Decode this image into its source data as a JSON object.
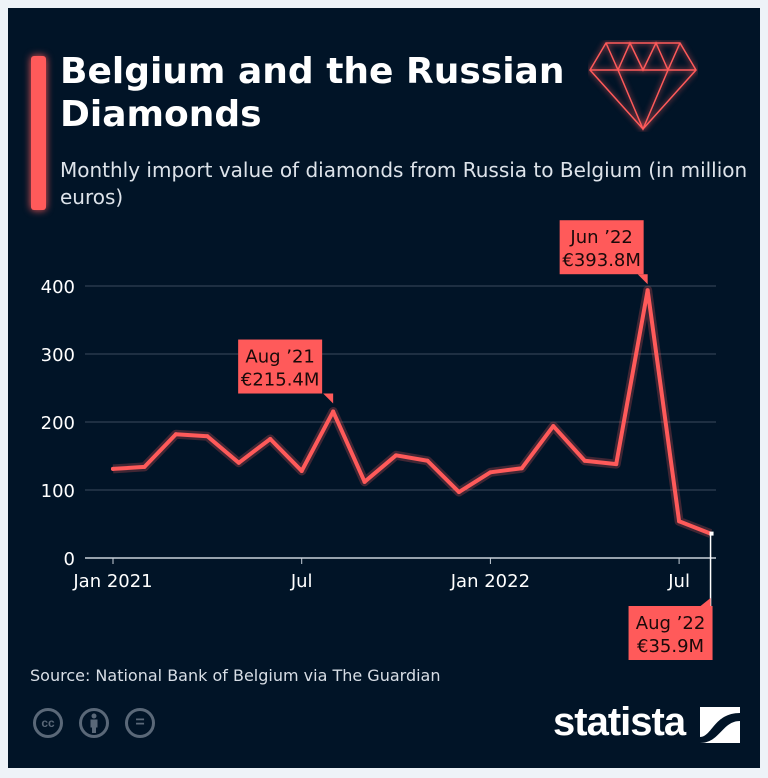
{
  "header": {
    "title": "Belgium and the Russian Diamonds",
    "subtitle": "Monthly import value of diamonds from Russia to Belgium (in million euros)"
  },
  "colors": {
    "background": "#011427",
    "accent": "#ff5a5a"
  },
  "chart_data": {
    "type": "line",
    "title": "Belgium and the Russian Diamonds",
    "ylabel": "million euros",
    "ylim": [
      0,
      400
    ],
    "yticks": [
      0,
      100,
      200,
      300,
      400
    ],
    "grid": true,
    "x": [
      "Jan 2021",
      "Feb 2021",
      "Mar 2021",
      "Apr 2021",
      "May 2021",
      "Jun 2021",
      "Jul 2021",
      "Aug 2021",
      "Sep 2021",
      "Oct 2021",
      "Nov 2021",
      "Dec 2021",
      "Jan 2022",
      "Feb 2022",
      "Mar 2022",
      "Apr 2022",
      "May 2022",
      "Jun 2022",
      "Jul 2022",
      "Aug 2022"
    ],
    "xtick_labels": [
      {
        "index": 0,
        "label": "Jan 2021"
      },
      {
        "index": 6,
        "label": "Jul"
      },
      {
        "index": 12,
        "label": "Jan 2022"
      },
      {
        "index": 18,
        "label": "Jul"
      }
    ],
    "series": [
      {
        "name": "Import value",
        "values": [
          131,
          134,
          182,
          179,
          140,
          175,
          128,
          215.4,
          112,
          151,
          143,
          97,
          126,
          132,
          194,
          143,
          138,
          393.8,
          54,
          35.9
        ]
      }
    ],
    "annotations": [
      {
        "index": 7,
        "line1": "Aug ’21",
        "line2": "€215.4M"
      },
      {
        "index": 17,
        "line1": "Jun ’22",
        "line2": "€393.8M"
      },
      {
        "index": 19,
        "line1": "Aug ’22",
        "line2": "€35.9M"
      }
    ]
  },
  "footer": {
    "source": "Source: National Bank of Belgium via The Guardian",
    "license_icons": [
      "cc-icon",
      "by-icon",
      "nd-icon"
    ],
    "cc_label": "cc",
    "nd_label": "=",
    "logo": "statista"
  }
}
